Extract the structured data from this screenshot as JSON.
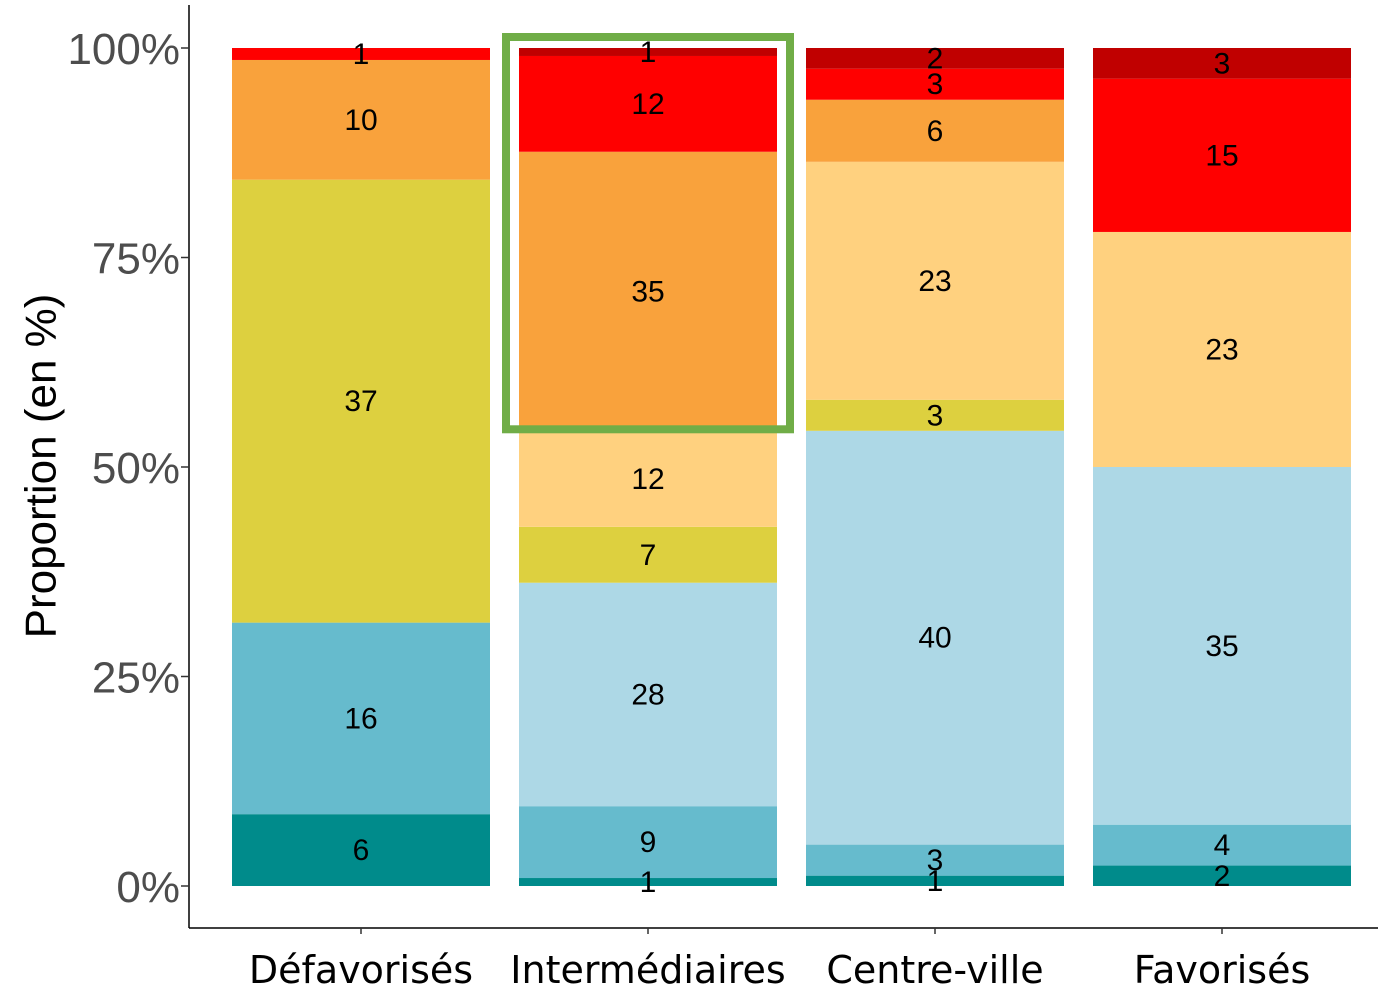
{
  "chart_data": {
    "type": "bar",
    "stacked": true,
    "normalized": true,
    "ylabel": "Proportion (en %)",
    "xlabel": "",
    "ylim": [
      0,
      100
    ],
    "yticks": [
      "0%",
      "25%",
      "50%",
      "75%",
      "100%"
    ],
    "grid": false,
    "categories": [
      "Défavorisés",
      "Intermédiaires",
      "Centre-ville",
      "Favorisés"
    ],
    "segment_colors": [
      "#008B8B",
      "#66BBCD",
      "#ADD8E6",
      "#DDD03F",
      "#FFD17F",
      "#F9A23C",
      "#FF0000",
      "#C00000"
    ],
    "series_values_bottom_to_top": [
      [
        6,
        16,
        0,
        37,
        0,
        10,
        1,
        0
      ],
      [
        1,
        9,
        28,
        7,
        12,
        35,
        12,
        1
      ],
      [
        1,
        3,
        40,
        3,
        23,
        6,
        3,
        2
      ],
      [
        2,
        4,
        35,
        0,
        23,
        0,
        15,
        3
      ]
    ],
    "highlight": {
      "category": "Intermédiaires",
      "from_percent": 54.5,
      "to_percent": 100,
      "color": "#70AD47"
    }
  }
}
